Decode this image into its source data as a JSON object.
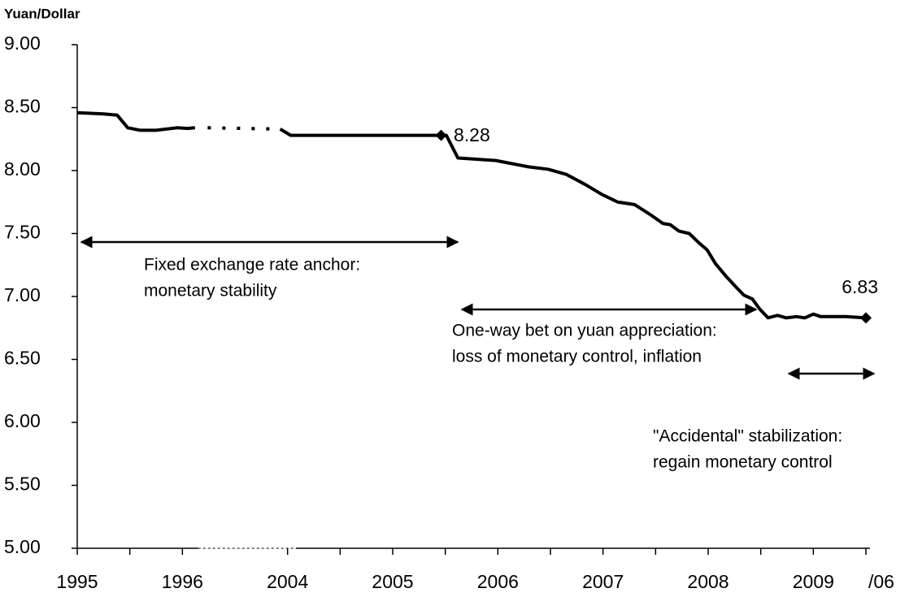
{
  "chart_data": {
    "type": "line",
    "y_label": "Yuan/Dollar",
    "ylim": [
      5,
      9
    ],
    "yticks": [
      {
        "value": 5,
        "label": "5.00"
      },
      {
        "value": 5.5,
        "label": "5.50"
      },
      {
        "value": 6,
        "label": "6.00"
      },
      {
        "value": 6.5,
        "label": "6.50"
      },
      {
        "value": 7,
        "label": "7.00"
      },
      {
        "value": 7.5,
        "label": "7.50"
      },
      {
        "value": 8,
        "label": "8.00"
      },
      {
        "value": 8.5,
        "label": "8.50"
      },
      {
        "value": 9,
        "label": "9.00"
      }
    ],
    "xlim": [
      0,
      7.5
    ],
    "xticks": [
      {
        "value": 0,
        "label": "1995"
      },
      {
        "value": 1,
        "label": "1996"
      },
      {
        "value": 2,
        "label": "2004"
      },
      {
        "value": 3,
        "label": "2005"
      },
      {
        "value": 4,
        "label": "2006"
      },
      {
        "value": 5,
        "label": "2007"
      },
      {
        "value": 6,
        "label": "2008"
      },
      {
        "value": 7,
        "label": "2009"
      }
    ],
    "x_minor_ticks": [
      0.5,
      2.5,
      3.5,
      4.5,
      5.5,
      6.5,
      7.5
    ],
    "x_suffix": "/06",
    "x_axis_break": [
      1.15,
      2.08
    ],
    "series": [
      {
        "color": "#000000",
        "style": "solid",
        "x": [
          0,
          0.25,
          0.38,
          0.48,
          0.6,
          0.75,
          0.95,
          1.05,
          1.12,
          1.5,
          1.93,
          2.03,
          2.5,
          3.0,
          3.46,
          3.51,
          3.62,
          3.98,
          4.29,
          4.48,
          4.65,
          4.83,
          4.99,
          5.14,
          5.3,
          5.45,
          5.57,
          5.64,
          5.72,
          5.82,
          5.92,
          5.99,
          6.07,
          6.17,
          6.27,
          6.34,
          6.42,
          6.49,
          6.57,
          6.66,
          6.74,
          6.84,
          6.92,
          7.0,
          7.07,
          7.31,
          7.5
        ],
        "values": [
          8.46,
          8.45,
          8.44,
          8.34,
          8.32,
          8.32,
          8.34,
          8.335,
          8.34,
          null,
          8.33,
          8.28,
          8.28,
          8.28,
          8.28,
          8.28,
          8.1,
          8.08,
          8.03,
          8.01,
          7.97,
          7.89,
          7.81,
          7.75,
          7.73,
          7.65,
          7.58,
          7.57,
          7.52,
          7.5,
          7.42,
          7.37,
          7.26,
          7.16,
          7.07,
          7.01,
          6.98,
          6.9,
          6.83,
          6.85,
          6.83,
          6.84,
          6.83,
          6.86,
          6.84,
          6.84,
          6.83
        ]
      },
      {
        "color": "#000000",
        "style": "dotted",
        "x": [
          1.24,
          1.9
        ],
        "values": [
          8.34,
          8.33
        ]
      }
    ],
    "markers": [
      {
        "x": 3.46,
        "value": 8.28
      },
      {
        "x": 7.5,
        "value": 6.83
      }
    ],
    "annotations": [
      {
        "lines": [
          "Fixed exchange rate anchor:",
          "monetary stability"
        ]
      },
      {
        "lines": [
          "One-way bet on yuan appreciation:",
          "loss of monetary control, inflation"
        ]
      },
      {
        "lines": [
          "\"Accidental\" stabilization:",
          "regain monetary control"
        ]
      }
    ]
  }
}
